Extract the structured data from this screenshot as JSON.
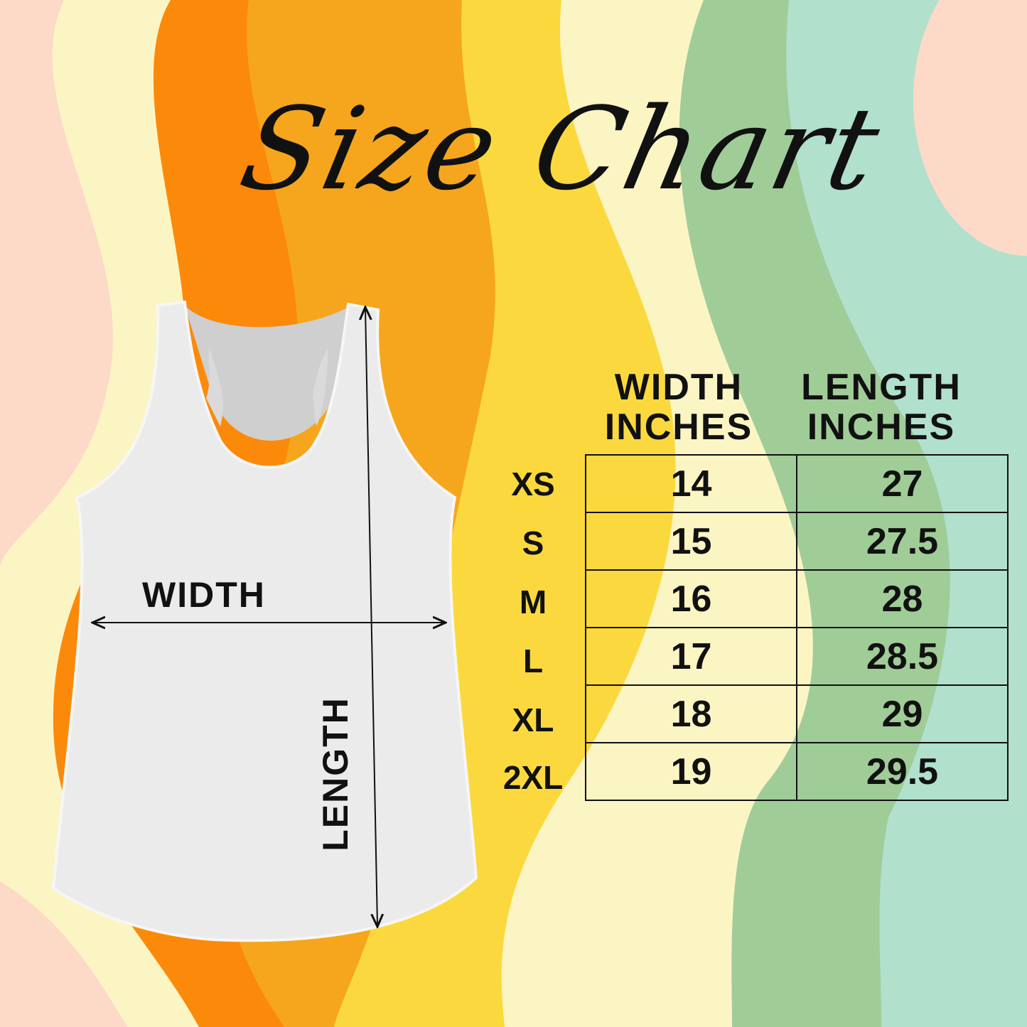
{
  "title": "Size Chart",
  "colors": {
    "peach": "#FDD9C8",
    "light_yellow": "#FBF5C4",
    "orange": "#FB8A0A",
    "amber": "#F6A61C",
    "yellow": "#FBD93E",
    "pale_yellow": "#FBF5C4",
    "green": "#A0CC98",
    "mint": "#B1E0CD"
  },
  "diagram": {
    "width_label": "WIDTH",
    "length_label": "LENGTH",
    "garment": "racerback-tank-top"
  },
  "table": {
    "headers": [
      {
        "line1": "WIDTH",
        "line2": "INCHES"
      },
      {
        "line1": "LENGTH",
        "line2": "INCHES"
      }
    ],
    "rows": [
      {
        "size": "XS",
        "width": "14",
        "length": "27"
      },
      {
        "size": "S",
        "width": "15",
        "length": "27.5"
      },
      {
        "size": "M",
        "width": "16",
        "length": "28"
      },
      {
        "size": "L",
        "width": "17",
        "length": "28.5"
      },
      {
        "size": "XL",
        "width": "18",
        "length": "29"
      },
      {
        "size": "2XL",
        "width": "19",
        "length": "29.5"
      }
    ]
  }
}
